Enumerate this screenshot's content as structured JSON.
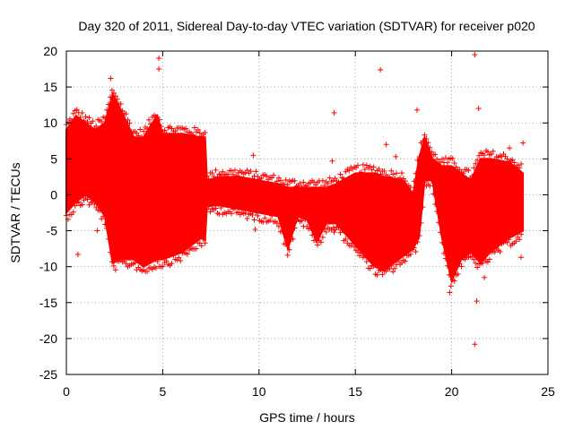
{
  "chart_data": {
    "type": "scatter",
    "title": "Day 320 of 2011, Sidereal Day-to-day VTEC variation (SDTVAR) for receiver p020",
    "xlabel": "GPS time / hours",
    "ylabel": "SDTVAR / TECUs",
    "xlim": [
      0,
      25
    ],
    "ylim": [
      -25,
      20
    ],
    "x_ticks": [
      0,
      5,
      10,
      15,
      20,
      25
    ],
    "y_ticks": [
      -25,
      -20,
      -15,
      -10,
      -5,
      0,
      5,
      10,
      15,
      20
    ],
    "grid": true,
    "legend": "none",
    "series": [
      {
        "name": "SDTVAR",
        "color": "#ff0000",
        "marker": "+",
        "envelope": [
          {
            "x": 0.0,
            "lo": -2.5,
            "hi": 9
          },
          {
            "x": 0.5,
            "lo": -1,
            "hi": 11
          },
          {
            "x": 1.0,
            "lo": 0,
            "hi": 10
          },
          {
            "x": 1.5,
            "lo": -1,
            "hi": 9
          },
          {
            "x": 2.0,
            "lo": -3,
            "hi": 10
          },
          {
            "x": 2.4,
            "lo": -9.5,
            "hi": 14
          },
          {
            "x": 2.8,
            "lo": -9,
            "hi": 12
          },
          {
            "x": 3.5,
            "lo": -9,
            "hi": 8
          },
          {
            "x": 4.0,
            "lo": -10,
            "hi": 8
          },
          {
            "x": 4.7,
            "lo": -9,
            "hi": 11
          },
          {
            "x": 5.0,
            "lo": -9,
            "hi": 8.5
          },
          {
            "x": 6.0,
            "lo": -8,
            "hi": 8.5
          },
          {
            "x": 7.0,
            "lo": -6,
            "hi": 8
          },
          {
            "x": 7.2,
            "lo": -6.3,
            "hi": 8
          },
          {
            "x": 7.3,
            "lo": -1.5,
            "hi": 2
          },
          {
            "x": 8.0,
            "lo": -1.5,
            "hi": 2.5
          },
          {
            "x": 9.0,
            "lo": -2,
            "hi": 2.5
          },
          {
            "x": 10.0,
            "lo": -2.5,
            "hi": 2
          },
          {
            "x": 11.0,
            "lo": -3,
            "hi": 1.5
          },
          {
            "x": 11.5,
            "lo": -7.5,
            "hi": 1
          },
          {
            "x": 12.0,
            "lo": -3,
            "hi": 1
          },
          {
            "x": 12.5,
            "lo": -3.5,
            "hi": 1
          },
          {
            "x": 13.0,
            "lo": -6.5,
            "hi": 1
          },
          {
            "x": 13.5,
            "lo": -4,
            "hi": 1
          },
          {
            "x": 14.0,
            "lo": -4,
            "hi": 1.5
          },
          {
            "x": 15.0,
            "lo": -7,
            "hi": 3
          },
          {
            "x": 16.0,
            "lo": -10,
            "hi": 3
          },
          {
            "x": 16.5,
            "lo": -10.5,
            "hi": 2.5
          },
          {
            "x": 17.5,
            "lo": -8.5,
            "hi": 2
          },
          {
            "x": 18.0,
            "lo": -7.5,
            "hi": 0
          },
          {
            "x": 18.3,
            "lo": -6,
            "hi": 5
          },
          {
            "x": 18.6,
            "lo": 2,
            "hi": 8
          },
          {
            "x": 19.0,
            "lo": 2,
            "hi": 5
          },
          {
            "x": 19.5,
            "lo": -6,
            "hi": 4
          },
          {
            "x": 20.0,
            "lo": -12,
            "hi": 4
          },
          {
            "x": 20.5,
            "lo": -9,
            "hi": 3
          },
          {
            "x": 21.0,
            "lo": -8,
            "hi": 2
          },
          {
            "x": 21.5,
            "lo": -9.5,
            "hi": 5
          },
          {
            "x": 22.0,
            "lo": -8,
            "hi": 5
          },
          {
            "x": 23.0,
            "lo": -6,
            "hi": 4.5
          },
          {
            "x": 23.7,
            "lo": -5,
            "hi": 3
          }
        ],
        "outliers": [
          {
            "x": 0.6,
            "y": -8.3
          },
          {
            "x": 1.6,
            "y": -5
          },
          {
            "x": 2.3,
            "y": 16.2
          },
          {
            "x": 4.8,
            "y": 19
          },
          {
            "x": 4.8,
            "y": 17.5
          },
          {
            "x": 9.7,
            "y": 5.5
          },
          {
            "x": 9.8,
            "y": -4.8
          },
          {
            "x": 13.9,
            "y": 11.4
          },
          {
            "x": 13.8,
            "y": 4.7
          },
          {
            "x": 13.9,
            "y": -5.2
          },
          {
            "x": 16.3,
            "y": 17.4
          },
          {
            "x": 16.6,
            "y": 7
          },
          {
            "x": 17.1,
            "y": 5.3
          },
          {
            "x": 18.2,
            "y": 11.8
          },
          {
            "x": 19.9,
            "y": -13.6
          },
          {
            "x": 21.2,
            "y": 19.5
          },
          {
            "x": 21.3,
            "y": -14.8
          },
          {
            "x": 21.2,
            "y": -20.8
          },
          {
            "x": 21.4,
            "y": 12
          },
          {
            "x": 21.7,
            "y": -11.5
          },
          {
            "x": 23.0,
            "y": 6.5
          },
          {
            "x": 23.7,
            "y": 7.2
          },
          {
            "x": 23.6,
            "y": -8.7
          }
        ]
      }
    ]
  }
}
